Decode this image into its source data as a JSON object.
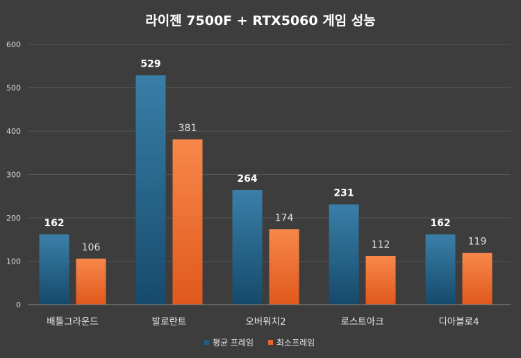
{
  "chart_data": {
    "type": "bar",
    "title": "라이젠 7500F + RTX5060 게임 성능",
    "categories": [
      "배틀그라운드",
      "발로란트",
      "오버워치2",
      "로스트아크",
      "디아블로4"
    ],
    "series": [
      {
        "name": "평균 프레임",
        "values": [
          162,
          529,
          264,
          231,
          162
        ],
        "color": "#1f5f87"
      },
      {
        "name": "최소프레임",
        "values": [
          106,
          381,
          174,
          112,
          119
        ],
        "color": "#e8662a"
      }
    ],
    "ylim": [
      0,
      600
    ],
    "yticks": [
      "0",
      "100",
      "200",
      "300",
      "400",
      "500",
      "600"
    ],
    "grid": true,
    "legend": "bottom"
  }
}
